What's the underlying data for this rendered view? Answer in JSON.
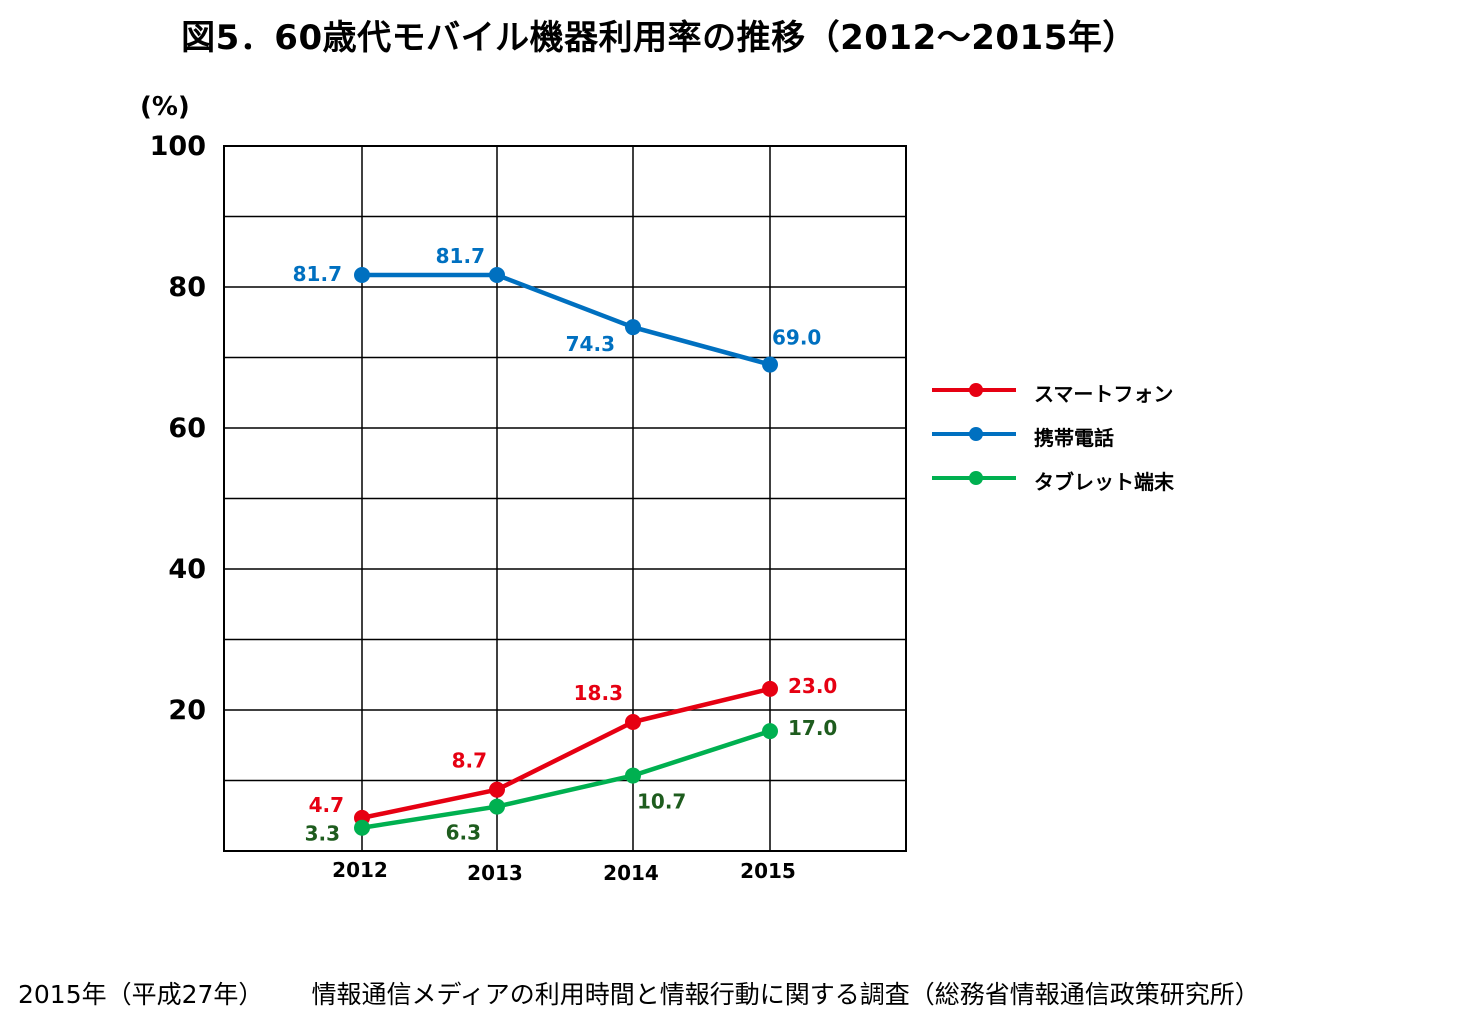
{
  "title": "図5．60歳代モバイル機器利用率の推移（2012～2015年）",
  "source": {
    "year_label": "2015年（平成27年）",
    "study_label": "情報通信メディアの利用時間と情報行動に関する調査（総務省情報通信政策研究所）"
  },
  "chart_data": {
    "type": "line",
    "title": "図5．60歳代モバイル機器利用率の推移（2012～2015年）",
    "ylabel": "(%)",
    "xlabel": "",
    "categories": [
      "2012",
      "2013",
      "2014",
      "2015"
    ],
    "ylim": [
      0,
      100
    ],
    "yticks": [
      "20",
      "40",
      "60",
      "80",
      "100"
    ],
    "grid": true,
    "legend_position": "right",
    "series": [
      {
        "name": "スマートフォン",
        "color": "#e60012",
        "label_color": "#e60012",
        "values": [
          4.7,
          8.7,
          18.3,
          23.0
        ],
        "labels": [
          "4.7",
          "8.7",
          "18.3",
          "23.0"
        ]
      },
      {
        "name": "携帯電話",
        "color": "#0070c0",
        "label_color": "#0070c0",
        "values": [
          81.7,
          81.7,
          74.3,
          69.0
        ],
        "labels": [
          "81.7",
          "81.7",
          "74.3",
          "69.0"
        ]
      },
      {
        "name": "タブレット端末",
        "color": "#00b050",
        "label_color": "#1e5c1e",
        "values": [
          3.3,
          6.3,
          10.7,
          17.0
        ],
        "labels": [
          "3.3",
          "6.3",
          "10.7",
          "17.0"
        ]
      }
    ]
  }
}
